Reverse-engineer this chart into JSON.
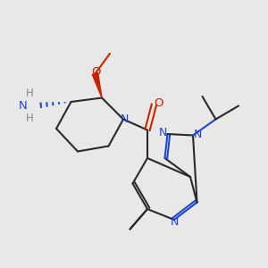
{
  "bg_color": "#e8e8e8",
  "bond_color": "#2a2a2a",
  "n_color": "#2244cc",
  "o_color": "#cc2200",
  "h_color": "#888888",
  "bond_width": 1.5,
  "font_size": 8.5,
  "xlim": [
    0,
    10
  ],
  "ylim": [
    0,
    10
  ]
}
